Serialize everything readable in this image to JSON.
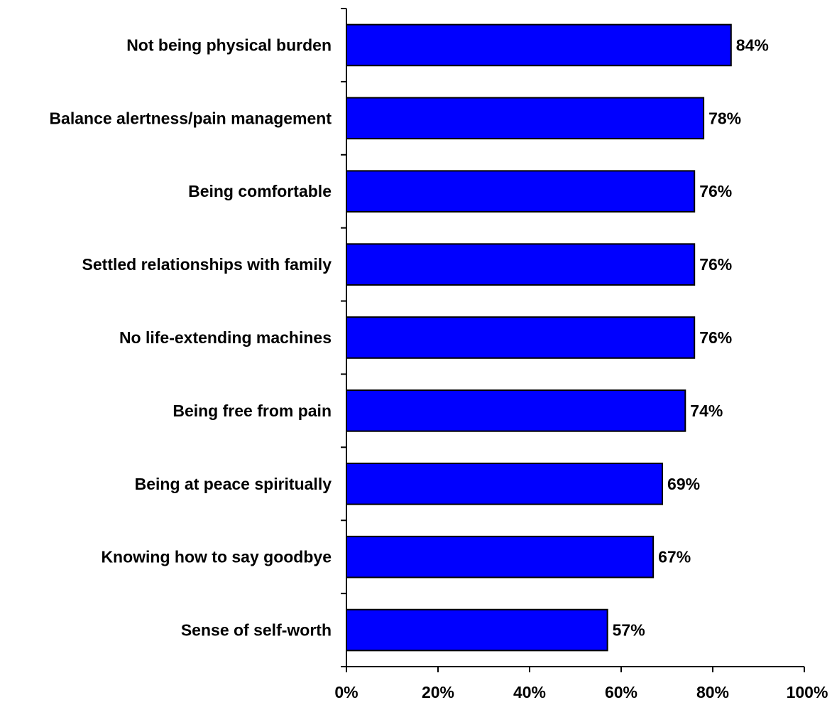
{
  "chart_data": {
    "type": "bar",
    "orientation": "horizontal",
    "categories": [
      "Not being physical burden",
      "Balance alertness/pain management",
      "Being comfortable",
      "Settled relationships with family",
      "No life-extending machines",
      "Being free from pain",
      "Being at peace spiritually",
      "Knowing how to say goodbye",
      "Sense of self-worth"
    ],
    "values": [
      84,
      78,
      76,
      76,
      76,
      74,
      69,
      67,
      57
    ],
    "data_labels": [
      "84%",
      "78%",
      "76%",
      "76%",
      "76%",
      "74%",
      "69%",
      "67%",
      "57%"
    ],
    "title": "",
    "xlabel": "",
    "ylabel": "",
    "xlim": [
      0,
      100
    ],
    "x_ticks": [
      0,
      20,
      40,
      60,
      80,
      100
    ],
    "x_tick_labels": [
      "0%",
      "20%",
      "40%",
      "60%",
      "80%",
      "100%"
    ],
    "grid": false,
    "legend": "none",
    "bar_color": "#0000FF",
    "edge_color": "#000000"
  }
}
